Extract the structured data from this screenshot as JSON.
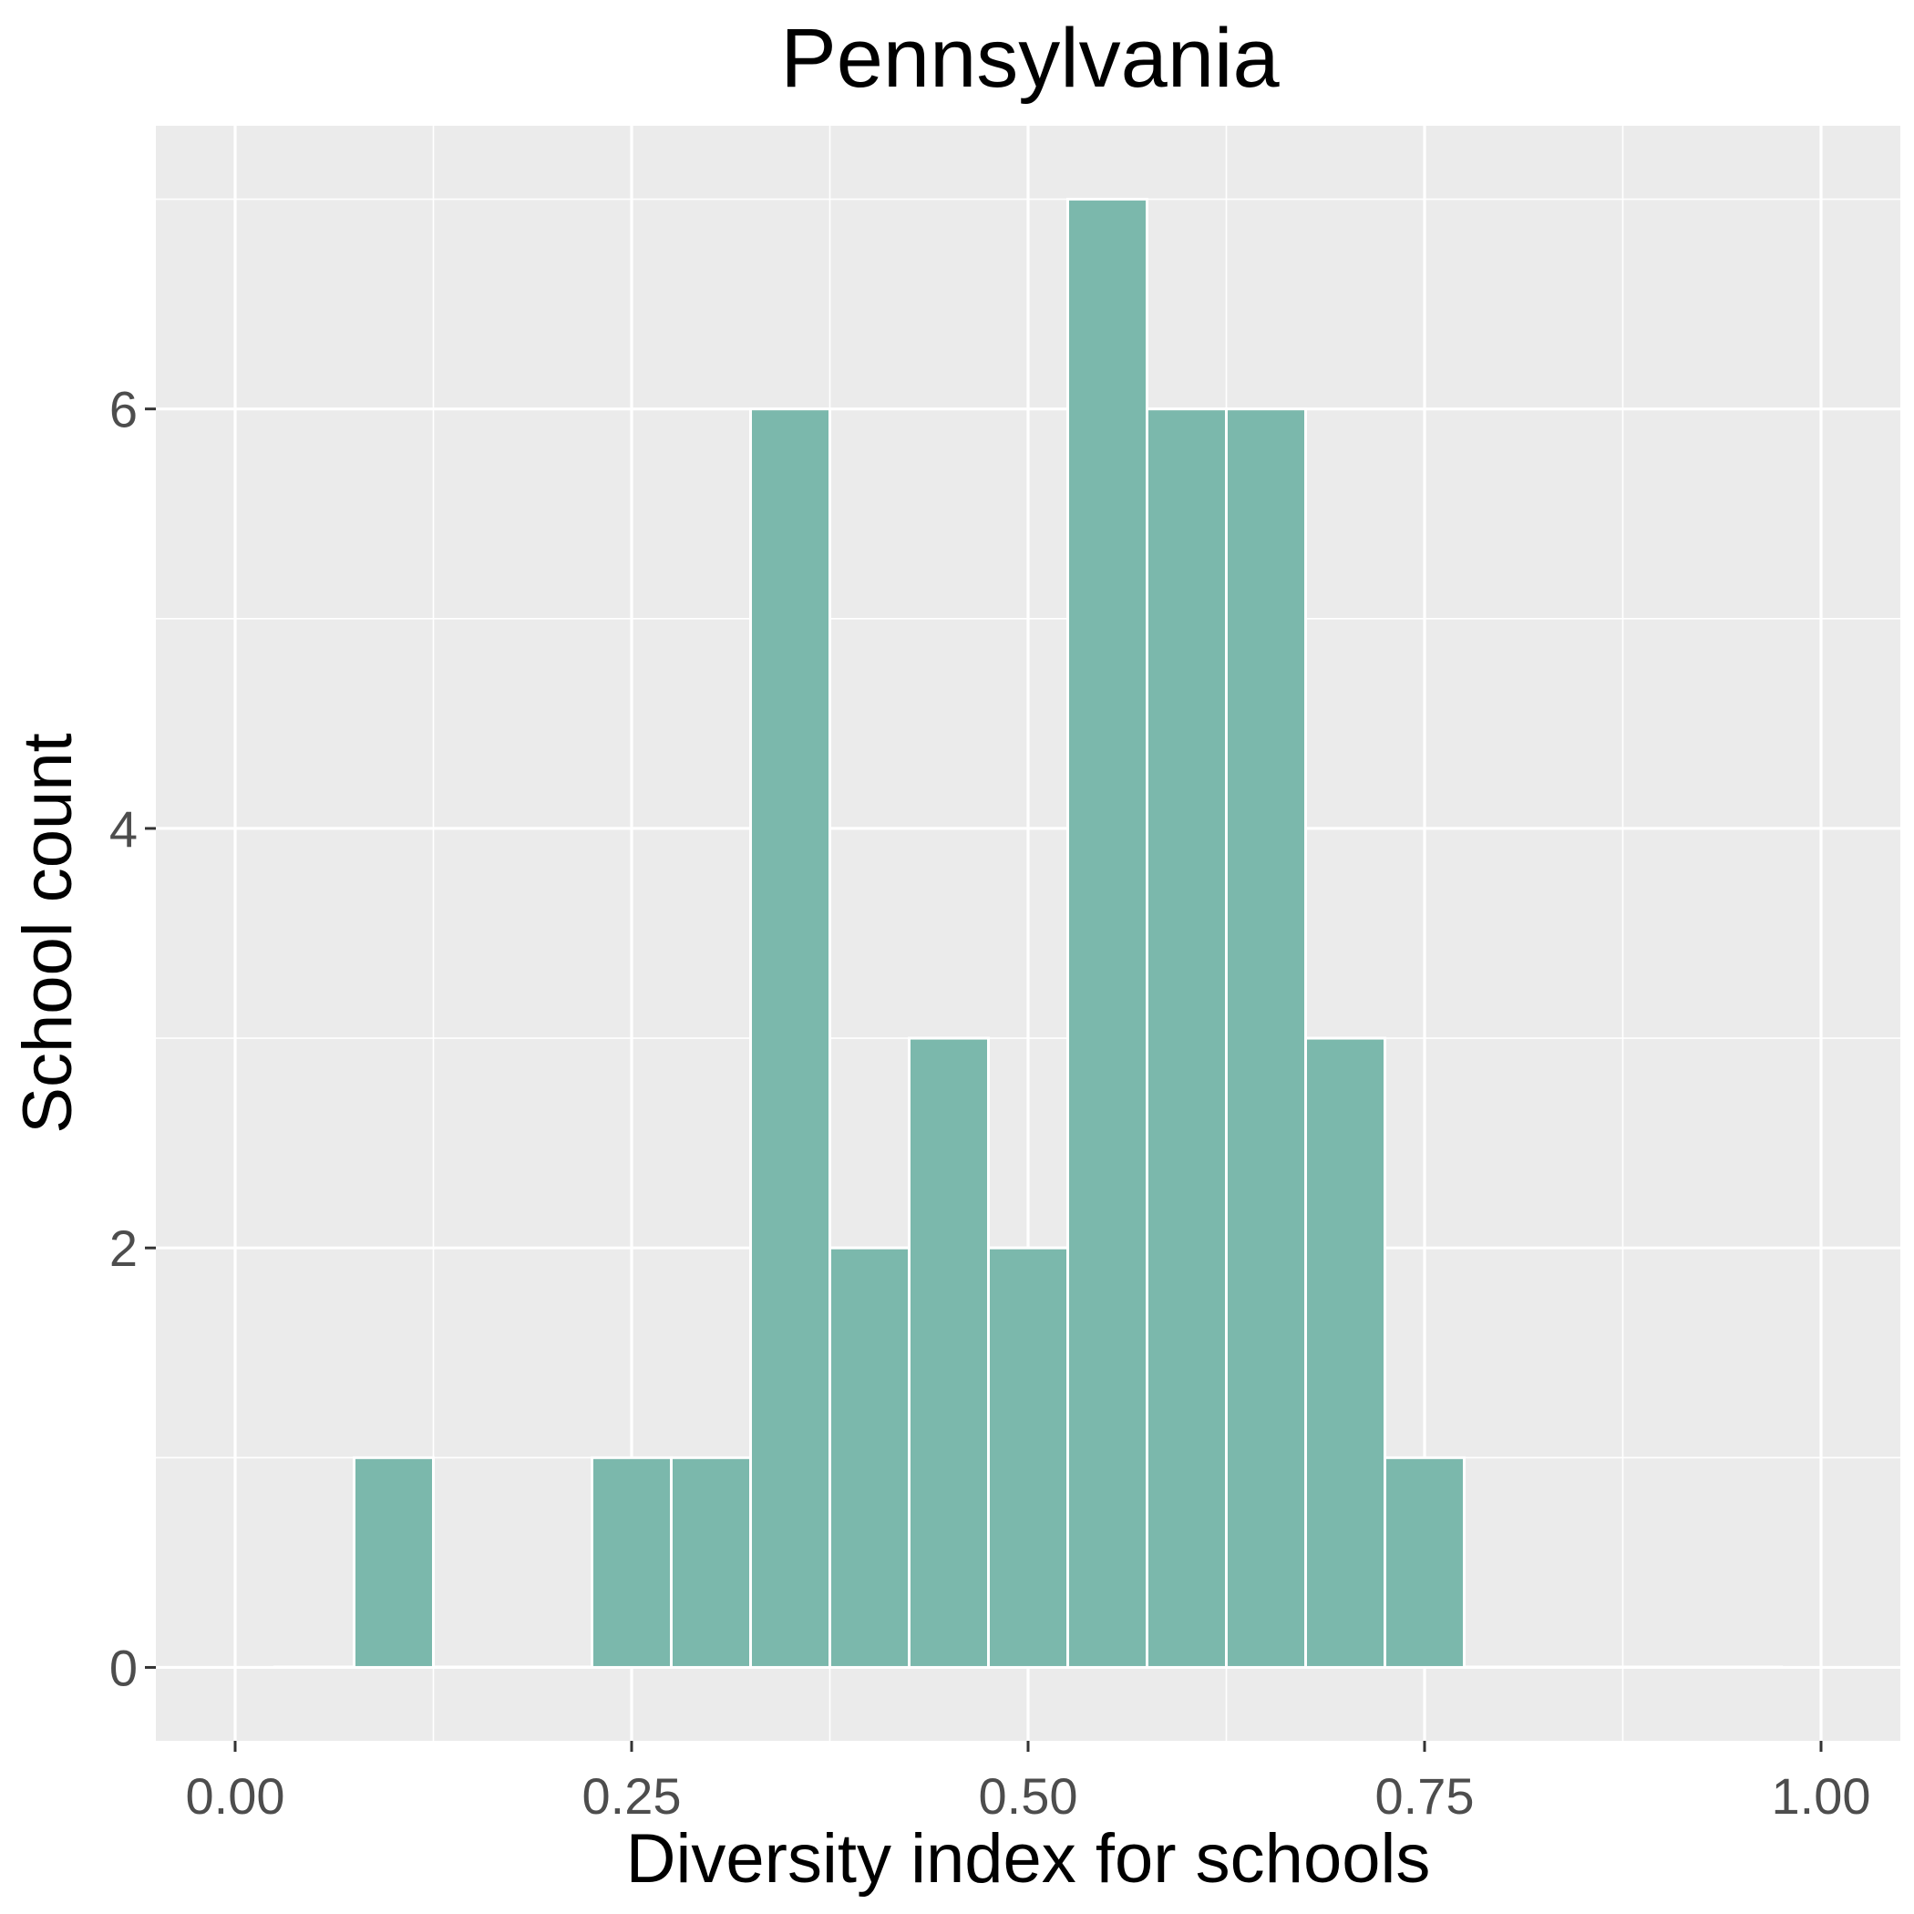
{
  "chart_data": {
    "type": "bar",
    "title": "Pennsylvania",
    "xlabel": "Diversity index for schools",
    "ylabel": "School count",
    "xlim": [
      -0.05,
      1.05
    ],
    "ylim": [
      -0.35,
      7.35
    ],
    "x_ticks": [
      0.0,
      0.25,
      0.5,
      0.75,
      1.0
    ],
    "x_tick_labels": [
      "0.00",
      "0.25",
      "0.50",
      "0.75",
      "1.00"
    ],
    "y_ticks": [
      0,
      2,
      4,
      6
    ],
    "y_tick_labels": [
      "0",
      "2",
      "4",
      "6"
    ],
    "bin_width": 0.05,
    "bins": [
      {
        "center": 0.05,
        "count": 0
      },
      {
        "center": 0.1,
        "count": 1
      },
      {
        "center": 0.15,
        "count": 0
      },
      {
        "center": 0.2,
        "count": 0
      },
      {
        "center": 0.25,
        "count": 1
      },
      {
        "center": 0.3,
        "count": 1
      },
      {
        "center": 0.35,
        "count": 6
      },
      {
        "center": 0.4,
        "count": 2
      },
      {
        "center": 0.45,
        "count": 3
      },
      {
        "center": 0.5,
        "count": 2
      },
      {
        "center": 0.55,
        "count": 7
      },
      {
        "center": 0.6,
        "count": 6
      },
      {
        "center": 0.65,
        "count": 6
      },
      {
        "center": 0.7,
        "count": 3
      },
      {
        "center": 0.75,
        "count": 1
      },
      {
        "center": 0.8,
        "count": 0
      },
      {
        "center": 0.85,
        "count": 0
      },
      {
        "center": 0.9,
        "count": 0
      },
      {
        "center": 0.95,
        "count": 0
      }
    ],
    "grid": true,
    "colors": {
      "bar_fill": "#7bb8ac",
      "panel_background": "#ebebeb",
      "grid_line": "#ffffff"
    }
  }
}
